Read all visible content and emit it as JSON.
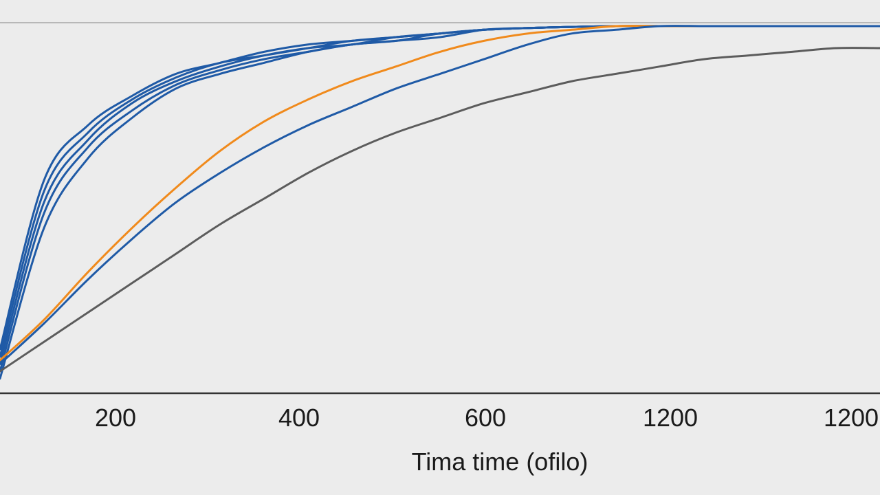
{
  "chart_data": {
    "type": "line",
    "title": "",
    "xlabel": "Tima time (ofilo)",
    "ylabel": "",
    "x_ticks": [
      "200",
      "400",
      "600",
      "1200",
      "1200"
    ],
    "grid": false,
    "legend": "none",
    "colors": {
      "blue": "#1f5aa6",
      "orange": "#f08a1c",
      "gray": "#5c5c5c",
      "axis": "#333333",
      "top_line": "#b8b8b8"
    },
    "ylim": [
      0,
      1
    ],
    "x": [
      0,
      1,
      2,
      3,
      4,
      5,
      6,
      7,
      8,
      9,
      10,
      11,
      12,
      13,
      14,
      15,
      16,
      17,
      18,
      19,
      20
    ],
    "series": [
      {
        "color": "#1f5aa6",
        "values": [
          0.12,
          0.58,
          0.73,
          0.81,
          0.87,
          0.9,
          0.93,
          0.95,
          0.96,
          0.97,
          0.98,
          0.99,
          0.995,
          0.998,
          1.0,
          1.0,
          1.0,
          1.0,
          1.0,
          1.0,
          1.0
        ]
      },
      {
        "color": "#1f5aa6",
        "values": [
          0.1,
          0.55,
          0.71,
          0.8,
          0.86,
          0.9,
          0.92,
          0.94,
          0.96,
          0.97,
          0.98,
          0.99,
          0.995,
          0.998,
          1.0,
          1.0,
          1.0,
          1.0,
          1.0,
          1.0,
          1.0
        ]
      },
      {
        "color": "#1f5aa6",
        "values": [
          0.08,
          0.52,
          0.69,
          0.79,
          0.85,
          0.89,
          0.92,
          0.94,
          0.95,
          0.97,
          0.98,
          0.99,
          0.995,
          0.998,
          1.0,
          1.0,
          1.0,
          1.0,
          1.0,
          1.0,
          1.0
        ]
      },
      {
        "color": "#1f5aa6",
        "values": [
          0.06,
          0.49,
          0.67,
          0.77,
          0.84,
          0.88,
          0.91,
          0.93,
          0.95,
          0.96,
          0.98,
          0.99,
          0.995,
          0.998,
          1.0,
          1.0,
          1.0,
          1.0,
          1.0,
          1.0,
          1.0
        ]
      },
      {
        "color": "#1f5aa6",
        "values": [
          0.04,
          0.45,
          0.64,
          0.75,
          0.83,
          0.87,
          0.9,
          0.93,
          0.95,
          0.96,
          0.97,
          0.99,
          0.995,
          0.998,
          1.0,
          1.0,
          1.0,
          1.0,
          1.0,
          1.0,
          1.0
        ]
      },
      {
        "color": "#f08a1c",
        "values": [
          0.09,
          0.2,
          0.33,
          0.45,
          0.56,
          0.66,
          0.74,
          0.8,
          0.85,
          0.89,
          0.93,
          0.96,
          0.98,
          0.99,
          1.0,
          1.0,
          1.0,
          1.0,
          1.0,
          1.0,
          1.0
        ]
      },
      {
        "color": "#1f5aa6",
        "values": [
          0.08,
          0.19,
          0.31,
          0.42,
          0.52,
          0.6,
          0.67,
          0.73,
          0.78,
          0.83,
          0.87,
          0.91,
          0.95,
          0.98,
          0.99,
          1.0,
          1.0,
          1.0,
          1.0,
          1.0,
          1.0
        ]
      },
      {
        "color": "#5c5c5c",
        "values": [
          0.06,
          0.14,
          0.22,
          0.3,
          0.38,
          0.46,
          0.53,
          0.6,
          0.66,
          0.71,
          0.75,
          0.79,
          0.82,
          0.85,
          0.87,
          0.89,
          0.91,
          0.92,
          0.93,
          0.94,
          0.94
        ]
      }
    ]
  }
}
